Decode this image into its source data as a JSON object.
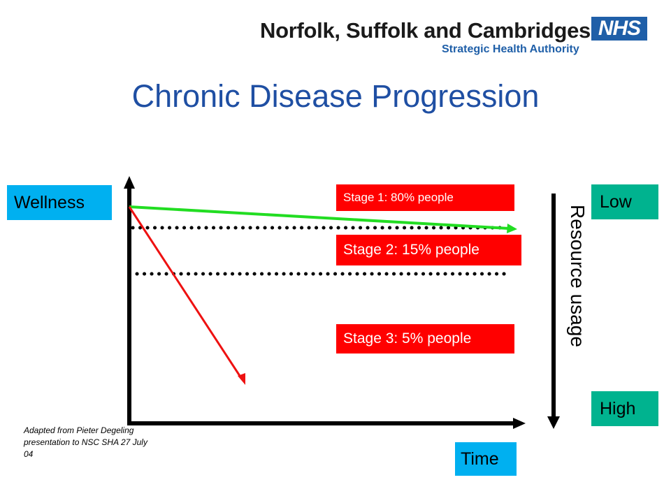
{
  "header": {
    "org_name": "Norfolk, Suffolk and Cambridgeshire",
    "org_subtitle": "Strategic Health Authority",
    "logo_text": "NHS"
  },
  "title": "Chronic Disease Progression",
  "axes": {
    "y_label": "Wellness",
    "x_label": "Time"
  },
  "stages": [
    {
      "label": "Stage 1:  80% people"
    },
    {
      "label": "Stage 2: 15% people"
    },
    {
      "label": "Stage 3: 5% people"
    }
  ],
  "resource_scale": {
    "label": "Resource usage",
    "low_label": "Low",
    "high_label": "High"
  },
  "credit": "Adapted from Pieter Degeling presentation to NSC SHA 27 July 04",
  "colors": {
    "title": "#1f4fa3",
    "cyan_box": "#00b0f0",
    "teal_box": "#00b38f",
    "stage_box": "#ff0000",
    "green_line": "#22dd22",
    "red_line": "#ee1111"
  }
}
